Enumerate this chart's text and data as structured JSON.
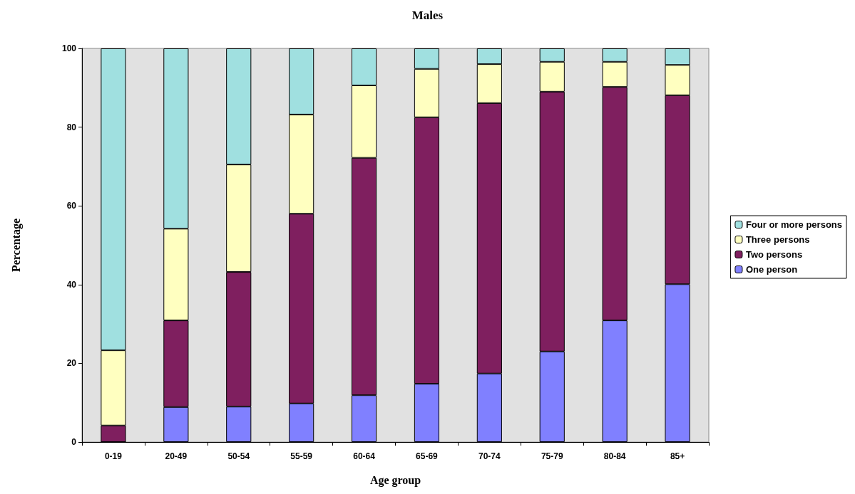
{
  "chart_data": {
    "type": "bar",
    "title": "Males",
    "xlabel": "Age group",
    "ylabel": "Percentage",
    "categories": [
      "0-19",
      "20-49",
      "50-54",
      "55-59",
      "60-64",
      "65-69",
      "70-74",
      "75-79",
      "80-84",
      "85+"
    ],
    "stacked": true,
    "ylim": [
      0,
      100
    ],
    "yticks": [
      0,
      20,
      40,
      60,
      80,
      100
    ],
    "grid": false,
    "legend": "right",
    "series": [
      {
        "name": "One person",
        "color": "#8080ff",
        "values": [
          0,
          8.9,
          9.0,
          9.8,
          11.9,
          14.8,
          17.4,
          23.0,
          30.9,
          40.1
        ]
      },
      {
        "name": "Two persons",
        "color": "#7f1f5f",
        "values": [
          4.2,
          22.0,
          34.2,
          48.2,
          60.3,
          67.7,
          68.7,
          66.0,
          59.3,
          48.0
        ]
      },
      {
        "name": "Three persons",
        "color": "#ffffc0",
        "values": [
          19.1,
          23.3,
          27.3,
          25.2,
          18.4,
          12.3,
          9.9,
          7.6,
          6.4,
          7.7
        ]
      },
      {
        "name": "Four or more persons",
        "color": "#a0e0e0",
        "values": [
          76.7,
          45.8,
          29.5,
          16.8,
          9.4,
          5.2,
          4.0,
          3.4,
          3.4,
          4.2
        ]
      }
    ]
  }
}
